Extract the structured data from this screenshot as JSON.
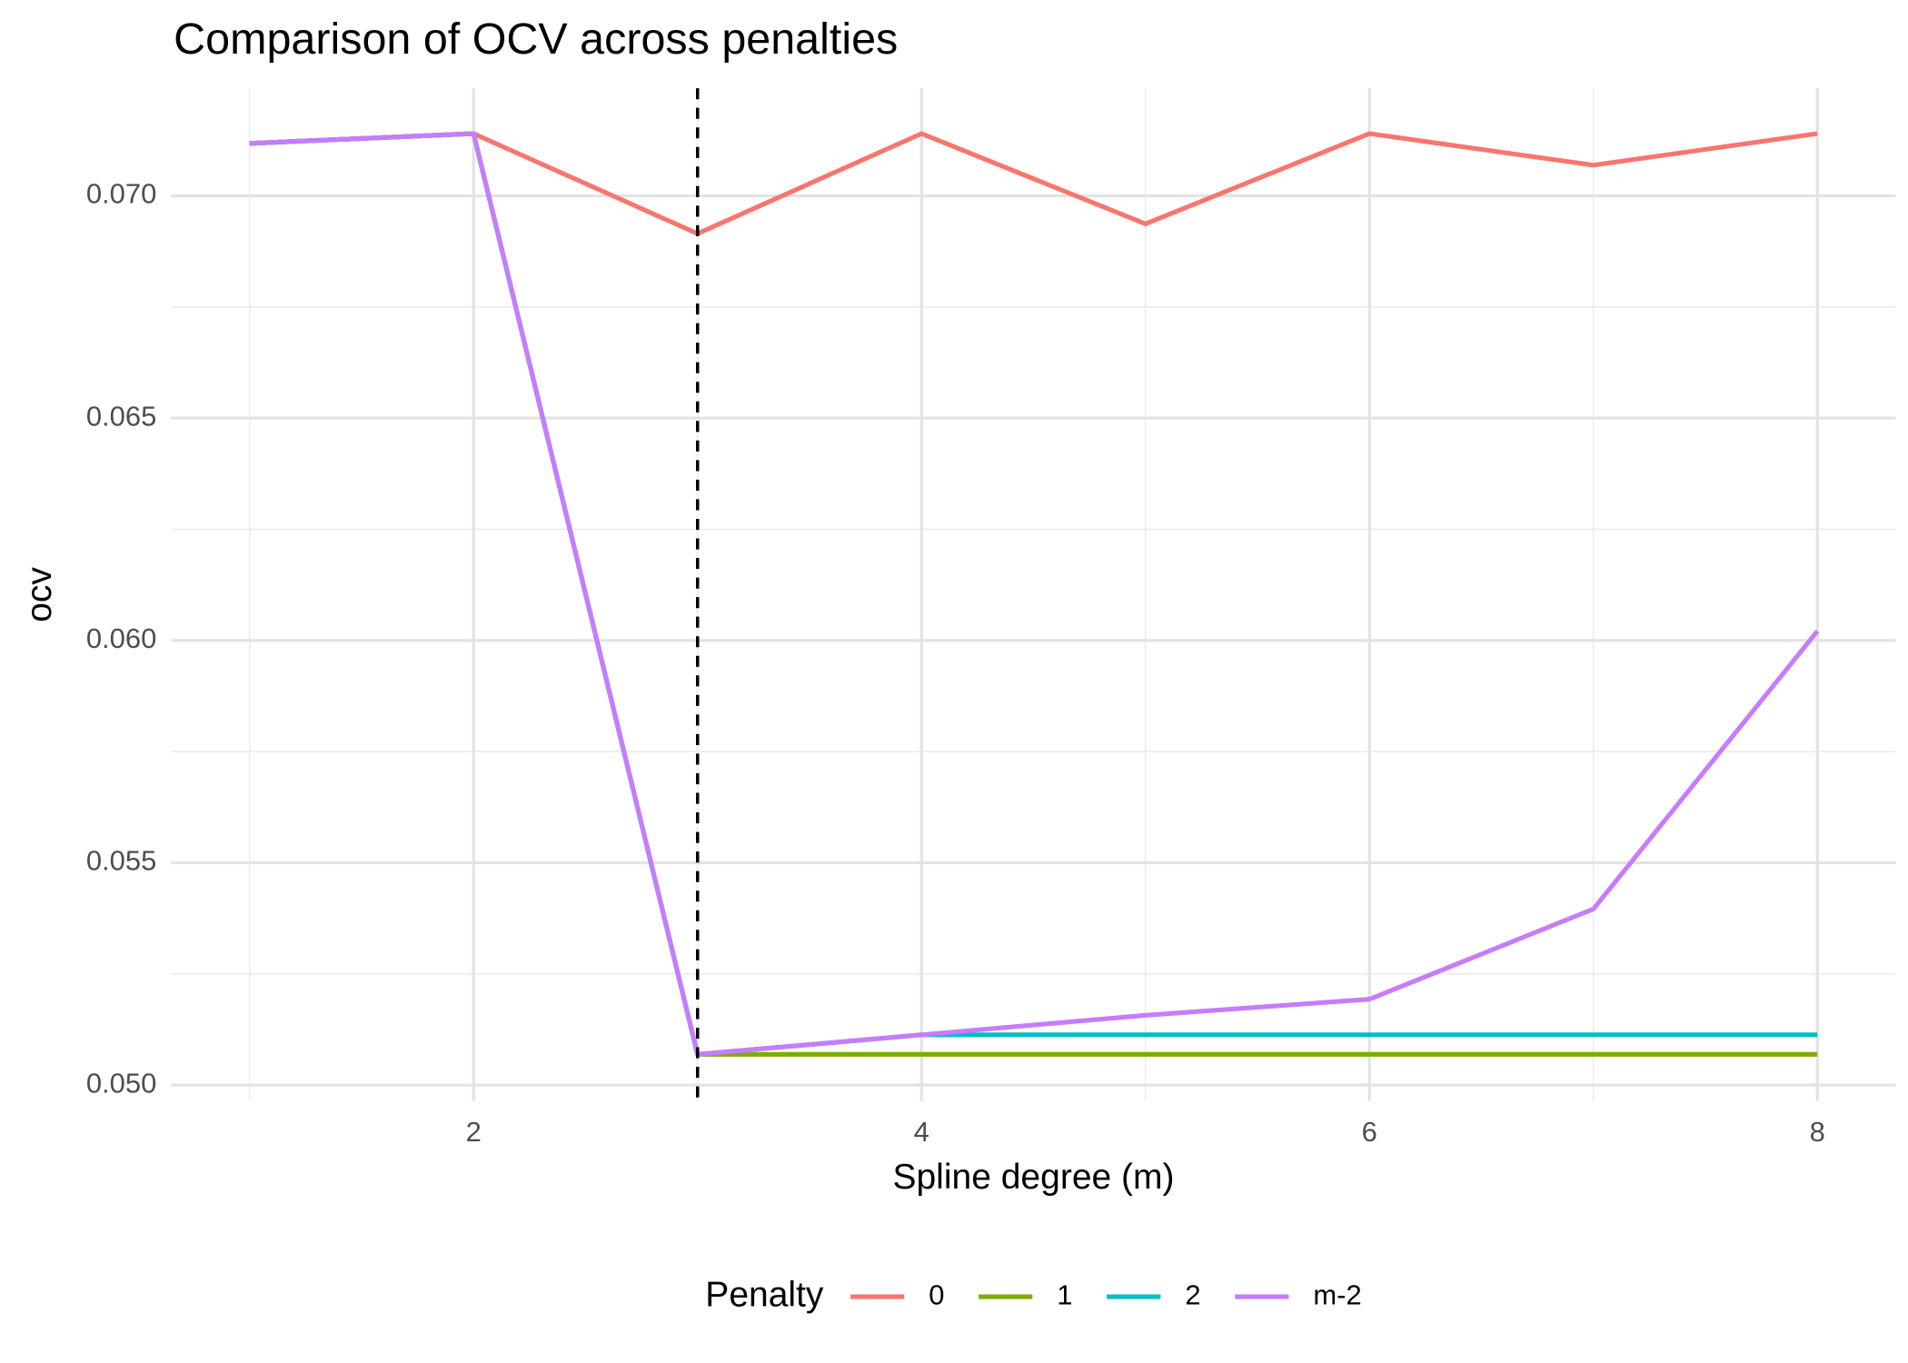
{
  "chart_data": {
    "type": "line",
    "title": "Comparison of OCV across penalties",
    "x_label": "Spline degree (m)",
    "y_label": "ocv",
    "x": [
      1,
      2,
      3,
      4,
      5,
      6,
      7,
      8
    ],
    "series": [
      {
        "name": "0",
        "color": "#F8766D",
        "values": [
          0.07118,
          0.0714,
          0.06915,
          0.0714,
          0.06937,
          0.0714,
          0.07069,
          0.0714
        ]
      },
      {
        "name": "1",
        "color": "#7CAE00",
        "values": [
          0.07118,
          0.0714,
          0.05069,
          0.05069,
          0.05069,
          0.05069,
          0.05069,
          0.05069
        ]
      },
      {
        "name": "2",
        "color": "#00BFC4",
        "values": [
          0.07118,
          0.0714,
          0.05069,
          0.05113,
          0.05113,
          0.05113,
          0.05113,
          0.05113
        ]
      },
      {
        "name": "m-2",
        "color": "#C77CFF",
        "values": [
          0.07118,
          0.0714,
          0.05069,
          0.05113,
          0.05157,
          0.05193,
          0.05396,
          0.06021
        ]
      }
    ],
    "xlim": [
      0.65,
      8.35
    ],
    "ylim": [
      0.04964,
      0.07242
    ],
    "xticks": [
      2,
      4,
      6,
      8
    ],
    "yticks": [
      {
        "value": 0.05,
        "label": "0.050"
      },
      0.055,
      {
        "value": 0.06,
        "label": "0.060"
      },
      0.065,
      {
        "value": 0.07,
        "label": "0.070"
      }
    ],
    "xminor_ticks": [
      1,
      3,
      5,
      7
    ],
    "yminor_ticks": [
      0.0525,
      0.0575,
      0.0625,
      0.0675
    ],
    "vline": 3,
    "grid": true,
    "legend_title": "Penalty",
    "legend_position": "bottom"
  }
}
